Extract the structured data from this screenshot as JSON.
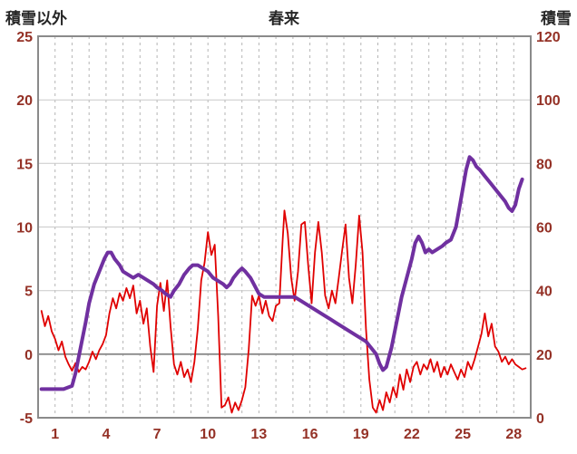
{
  "chart_data": {
    "type": "line",
    "title": "春来",
    "left_axis": {
      "label": "積雪以外",
      "min": -5,
      "max": 25,
      "ticks": [
        -5,
        0,
        5,
        10,
        15,
        20,
        25
      ]
    },
    "right_axis": {
      "label": "積雪",
      "min": 0,
      "max": 120,
      "ticks": [
        0,
        20,
        40,
        60,
        80,
        100,
        120
      ]
    },
    "x_axis": {
      "min": 0,
      "max": 29,
      "labeled_ticks": [
        1,
        4,
        7,
        10,
        13,
        16,
        19,
        22,
        25,
        28
      ],
      "grid_step": 1
    },
    "legend": "none",
    "grid": "on",
    "colors": {
      "tick_label": "#943126",
      "title": "#262626",
      "grid": "#c9c9c9",
      "grid_dash": "#b5b5b5",
      "zero_line": "#8a8a8a",
      "border": "#8a8a8a",
      "background": "#ffffff"
    },
    "series": [
      {
        "name": "積雪以外",
        "axis": "left",
        "color": "#e00000",
        "width": 1.8,
        "points": [
          [
            0.2,
            3.4
          ],
          [
            0.4,
            2.2
          ],
          [
            0.6,
            3.0
          ],
          [
            0.8,
            1.8
          ],
          [
            1.0,
            1.2
          ],
          [
            1.2,
            0.3
          ],
          [
            1.4,
            1.0
          ],
          [
            1.6,
            -0.2
          ],
          [
            1.8,
            -0.8
          ],
          [
            2.0,
            -1.3
          ],
          [
            2.2,
            -0.7
          ],
          [
            2.4,
            -1.4
          ],
          [
            2.6,
            -1.0
          ],
          [
            2.8,
            -1.2
          ],
          [
            3.0,
            -0.6
          ],
          [
            3.2,
            0.2
          ],
          [
            3.4,
            -0.4
          ],
          [
            3.6,
            0.3
          ],
          [
            3.8,
            0.8
          ],
          [
            4.0,
            1.5
          ],
          [
            4.2,
            3.2
          ],
          [
            4.4,
            4.4
          ],
          [
            4.6,
            3.6
          ],
          [
            4.8,
            4.8
          ],
          [
            5.0,
            4.2
          ],
          [
            5.2,
            5.2
          ],
          [
            5.4,
            4.4
          ],
          [
            5.6,
            5.4
          ],
          [
            5.8,
            3.2
          ],
          [
            6.0,
            4.2
          ],
          [
            6.2,
            2.4
          ],
          [
            6.4,
            3.6
          ],
          [
            6.6,
            0.6
          ],
          [
            6.8,
            -1.4
          ],
          [
            7.0,
            3.8
          ],
          [
            7.2,
            5.6
          ],
          [
            7.4,
            3.4
          ],
          [
            7.6,
            5.8
          ],
          [
            7.8,
            2.2
          ],
          [
            8.0,
            -0.8
          ],
          [
            8.2,
            -1.6
          ],
          [
            8.4,
            -0.6
          ],
          [
            8.6,
            -1.8
          ],
          [
            8.8,
            -1.2
          ],
          [
            9.0,
            -2.2
          ],
          [
            9.2,
            -0.6
          ],
          [
            9.4,
            2.0
          ],
          [
            9.6,
            5.8
          ],
          [
            9.8,
            7.2
          ],
          [
            10.0,
            9.6
          ],
          [
            10.2,
            7.8
          ],
          [
            10.4,
            8.6
          ],
          [
            10.6,
            3.0
          ],
          [
            10.8,
            -4.2
          ],
          [
            11.0,
            -4.0
          ],
          [
            11.2,
            -3.4
          ],
          [
            11.4,
            -4.6
          ],
          [
            11.6,
            -3.8
          ],
          [
            11.8,
            -4.4
          ],
          [
            12.0,
            -3.6
          ],
          [
            12.2,
            -2.6
          ],
          [
            12.4,
            0.4
          ],
          [
            12.6,
            4.6
          ],
          [
            12.8,
            3.8
          ],
          [
            13.0,
            4.6
          ],
          [
            13.2,
            3.2
          ],
          [
            13.4,
            4.2
          ],
          [
            13.6,
            3.0
          ],
          [
            13.8,
            2.6
          ],
          [
            14.0,
            3.8
          ],
          [
            14.2,
            4.0
          ],
          [
            14.4,
            9.0
          ],
          [
            14.5,
            11.3
          ],
          [
            14.7,
            9.5
          ],
          [
            14.9,
            6.0
          ],
          [
            15.1,
            4.2
          ],
          [
            15.3,
            6.5
          ],
          [
            15.5,
            10.2
          ],
          [
            15.7,
            10.4
          ],
          [
            15.9,
            7.0
          ],
          [
            16.1,
            4.0
          ],
          [
            16.3,
            8.0
          ],
          [
            16.5,
            10.4
          ],
          [
            16.7,
            8.0
          ],
          [
            16.9,
            4.6
          ],
          [
            17.1,
            3.6
          ],
          [
            17.3,
            5.0
          ],
          [
            17.5,
            4.0
          ],
          [
            17.7,
            6.0
          ],
          [
            17.9,
            8.2
          ],
          [
            18.1,
            10.2
          ],
          [
            18.3,
            6.0
          ],
          [
            18.5,
            4.0
          ],
          [
            18.7,
            7.0
          ],
          [
            18.9,
            10.9
          ],
          [
            19.1,
            8.0
          ],
          [
            19.3,
            2.0
          ],
          [
            19.5,
            -2.0
          ],
          [
            19.7,
            -4.2
          ],
          [
            19.9,
            -4.6
          ],
          [
            20.1,
            -3.6
          ],
          [
            20.3,
            -4.4
          ],
          [
            20.5,
            -3.0
          ],
          [
            20.7,
            -3.8
          ],
          [
            20.9,
            -2.6
          ],
          [
            21.1,
            -3.4
          ],
          [
            21.3,
            -1.6
          ],
          [
            21.5,
            -2.8
          ],
          [
            21.7,
            -1.2
          ],
          [
            21.9,
            -2.2
          ],
          [
            22.1,
            -1.0
          ],
          [
            22.3,
            -0.6
          ],
          [
            22.5,
            -1.6
          ],
          [
            22.7,
            -0.8
          ],
          [
            22.9,
            -1.2
          ],
          [
            23.1,
            -0.4
          ],
          [
            23.3,
            -1.4
          ],
          [
            23.5,
            -0.6
          ],
          [
            23.7,
            -1.8
          ],
          [
            23.9,
            -1.0
          ],
          [
            24.1,
            -1.6
          ],
          [
            24.3,
            -0.8
          ],
          [
            24.5,
            -1.4
          ],
          [
            24.7,
            -2.0
          ],
          [
            24.9,
            -1.2
          ],
          [
            25.1,
            -1.8
          ],
          [
            25.3,
            -0.6
          ],
          [
            25.5,
            -1.2
          ],
          [
            25.7,
            -0.4
          ],
          [
            25.9,
            0.6
          ],
          [
            26.1,
            1.6
          ],
          [
            26.3,
            3.2
          ],
          [
            26.5,
            1.4
          ],
          [
            26.7,
            2.4
          ],
          [
            26.9,
            0.6
          ],
          [
            27.1,
            0.2
          ],
          [
            27.3,
            -0.6
          ],
          [
            27.5,
            -0.2
          ],
          [
            27.7,
            -0.8
          ],
          [
            27.9,
            -0.4
          ],
          [
            28.1,
            -0.8
          ],
          [
            28.3,
            -1.0
          ],
          [
            28.5,
            -1.2
          ],
          [
            28.7,
            -1.1
          ]
        ]
      },
      {
        "name": "積雪",
        "axis": "right",
        "color": "#7030a0",
        "width": 4,
        "points": [
          [
            0.2,
            9
          ],
          [
            0.5,
            9
          ],
          [
            1.0,
            9
          ],
          [
            1.5,
            9
          ],
          [
            2.0,
            10
          ],
          [
            2.2,
            14
          ],
          [
            2.5,
            22
          ],
          [
            2.8,
            30
          ],
          [
            3.0,
            36
          ],
          [
            3.3,
            42
          ],
          [
            3.6,
            46
          ],
          [
            3.9,
            50
          ],
          [
            4.1,
            52
          ],
          [
            4.3,
            52
          ],
          [
            4.5,
            50
          ],
          [
            4.8,
            48
          ],
          [
            5.0,
            46
          ],
          [
            5.3,
            45
          ],
          [
            5.6,
            44
          ],
          [
            5.9,
            45
          ],
          [
            6.2,
            44
          ],
          [
            6.5,
            43
          ],
          [
            6.8,
            42
          ],
          [
            7.0,
            41
          ],
          [
            7.3,
            40
          ],
          [
            7.5,
            39
          ],
          [
            7.8,
            38
          ],
          [
            8.0,
            40
          ],
          [
            8.3,
            42
          ],
          [
            8.6,
            45
          ],
          [
            8.9,
            47
          ],
          [
            9.1,
            48
          ],
          [
            9.4,
            48
          ],
          [
            9.7,
            47
          ],
          [
            10.0,
            46
          ],
          [
            10.3,
            44
          ],
          [
            10.6,
            43
          ],
          [
            10.9,
            42
          ],
          [
            11.1,
            41
          ],
          [
            11.3,
            42
          ],
          [
            11.5,
            44
          ],
          [
            11.8,
            46
          ],
          [
            12.0,
            47
          ],
          [
            12.2,
            46
          ],
          [
            12.5,
            44
          ],
          [
            12.8,
            41
          ],
          [
            13.0,
            39
          ],
          [
            13.3,
            38
          ],
          [
            13.6,
            38
          ],
          [
            13.9,
            38
          ],
          [
            14.2,
            38
          ],
          [
            14.5,
            38
          ],
          [
            14.8,
            38
          ],
          [
            15.1,
            38
          ],
          [
            15.4,
            37
          ],
          [
            15.7,
            36
          ],
          [
            16.0,
            35
          ],
          [
            16.3,
            34
          ],
          [
            16.6,
            33
          ],
          [
            16.9,
            32
          ],
          [
            17.2,
            31
          ],
          [
            17.5,
            30
          ],
          [
            17.8,
            29
          ],
          [
            18.1,
            28
          ],
          [
            18.4,
            27
          ],
          [
            18.7,
            26
          ],
          [
            19.0,
            25
          ],
          [
            19.3,
            24
          ],
          [
            19.6,
            22
          ],
          [
            19.9,
            20
          ],
          [
            20.1,
            17
          ],
          [
            20.3,
            15
          ],
          [
            20.5,
            16
          ],
          [
            20.8,
            22
          ],
          [
            21.1,
            30
          ],
          [
            21.4,
            38
          ],
          [
            21.7,
            44
          ],
          [
            22.0,
            50
          ],
          [
            22.2,
            55
          ],
          [
            22.4,
            57
          ],
          [
            22.6,
            55
          ],
          [
            22.8,
            52
          ],
          [
            23.0,
            53
          ],
          [
            23.2,
            52
          ],
          [
            23.5,
            53
          ],
          [
            23.8,
            54
          ],
          [
            24.0,
            55
          ],
          [
            24.3,
            56
          ],
          [
            24.6,
            60
          ],
          [
            24.8,
            66
          ],
          [
            25.0,
            72
          ],
          [
            25.2,
            78
          ],
          [
            25.4,
            82
          ],
          [
            25.6,
            81
          ],
          [
            25.8,
            79
          ],
          [
            26.0,
            78
          ],
          [
            26.3,
            76
          ],
          [
            26.6,
            74
          ],
          [
            26.9,
            72
          ],
          [
            27.2,
            70
          ],
          [
            27.5,
            68
          ],
          [
            27.7,
            66
          ],
          [
            27.9,
            65
          ],
          [
            28.1,
            67
          ],
          [
            28.3,
            72
          ],
          [
            28.5,
            75
          ]
        ]
      }
    ]
  }
}
